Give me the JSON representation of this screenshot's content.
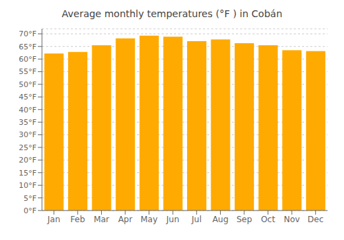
{
  "chart_data": {
    "type": "bar",
    "title": "Average monthly temperatures (°F ) in Cobán",
    "categories": [
      "Jan",
      "Feb",
      "Mar",
      "Apr",
      "May",
      "Jun",
      "Jul",
      "Aug",
      "Sep",
      "Oct",
      "Nov",
      "Dec"
    ],
    "values": [
      62.2,
      62.8,
      65.5,
      68.2,
      69.3,
      68.9,
      67.1,
      67.8,
      66.3,
      65.5,
      63.5,
      63.2
    ],
    "color": "#FFAA00",
    "ylim": [
      0,
      72
    ],
    "yticks": [
      {
        "value": 0,
        "label": "0°F"
      },
      {
        "value": 5,
        "label": "5°F"
      },
      {
        "value": 10,
        "label": "10°F"
      },
      {
        "value": 15,
        "label": "15°F"
      },
      {
        "value": 20,
        "label": "20°F"
      },
      {
        "value": 25,
        "label": "25°F"
      },
      {
        "value": 30,
        "label": "30°F"
      },
      {
        "value": 35,
        "label": "35°F"
      },
      {
        "value": 40,
        "label": "40°F"
      },
      {
        "value": 45,
        "label": "45°F"
      },
      {
        "value": 50,
        "label": "50°F"
      },
      {
        "value": 55,
        "label": "55°F"
      },
      {
        "value": 60,
        "label": "60°F"
      },
      {
        "value": 65,
        "label": "65°F"
      },
      {
        "value": 70,
        "label": "70°F"
      }
    ],
    "grid": true
  }
}
